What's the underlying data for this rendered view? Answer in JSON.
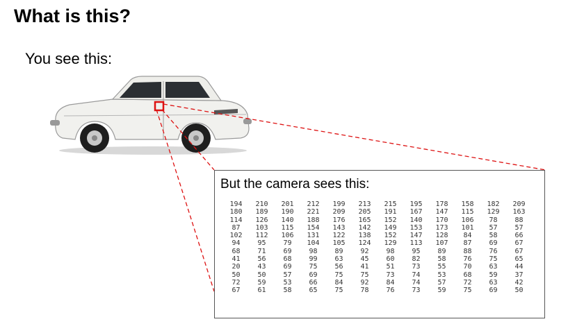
{
  "title": "What is this?",
  "subtitle": "You see this:",
  "panel_title": "But the camera sees this:",
  "colors": {
    "highlight": "#dd1111",
    "car_body": "#f1f1ee"
  },
  "pixel_values": [
    [
      194,
      210,
      201,
      212,
      199,
      213,
      215,
      195,
      178,
      158,
      182,
      209
    ],
    [
      180,
      189,
      190,
      221,
      209,
      205,
      191,
      167,
      147,
      115,
      129,
      163
    ],
    [
      114,
      126,
      140,
      188,
      176,
      165,
      152,
      140,
      170,
      106,
      78,
      88
    ],
    [
      87,
      103,
      115,
      154,
      143,
      142,
      149,
      153,
      173,
      101,
      57,
      57
    ],
    [
      102,
      112,
      106,
      131,
      122,
      138,
      152,
      147,
      128,
      84,
      58,
      66
    ],
    [
      94,
      95,
      79,
      104,
      105,
      124,
      129,
      113,
      107,
      87,
      69,
      67
    ],
    [
      68,
      71,
      69,
      98,
      89,
      92,
      98,
      95,
      89,
      88,
      76,
      67
    ],
    [
      41,
      56,
      68,
      99,
      63,
      45,
      60,
      82,
      58,
      76,
      75,
      65
    ],
    [
      20,
      43,
      69,
      75,
      56,
      41,
      51,
      73,
      55,
      70,
      63,
      44
    ],
    [
      50,
      50,
      57,
      69,
      75,
      75,
      73,
      74,
      53,
      68,
      59,
      37
    ],
    [
      72,
      59,
      53,
      66,
      84,
      92,
      84,
      74,
      57,
      72,
      63,
      42
    ],
    [
      67,
      61,
      58,
      65,
      75,
      78,
      76,
      73,
      59,
      75,
      69,
      50
    ]
  ]
}
